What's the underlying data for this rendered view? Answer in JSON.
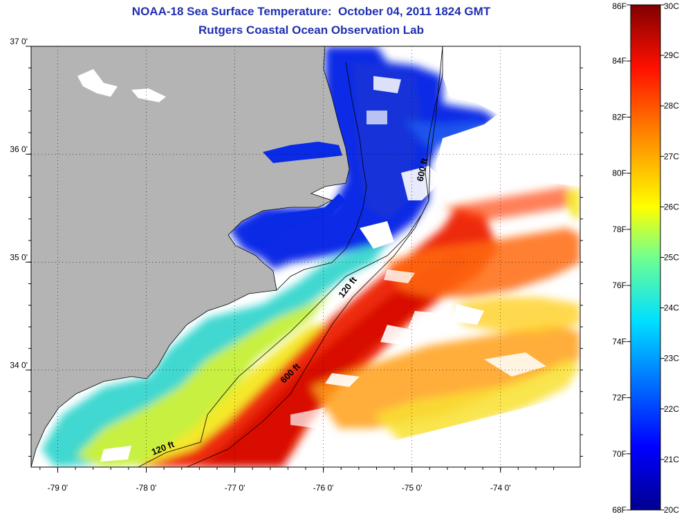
{
  "title_line1": "NOAA-18 Sea Surface Temperature:  October 04, 2011 1824 GMT",
  "title_line2": "Rutgers Coastal Ocean Observation Lab",
  "map": {
    "lon_range": [
      -79.3,
      -73.1
    ],
    "lat_range": [
      33.1,
      37.0
    ],
    "lon_ticks": [
      {
        "value": -79,
        "label": "-79 0'"
      },
      {
        "value": -78,
        "label": "-78 0'"
      },
      {
        "value": -77,
        "label": "-77 0'"
      },
      {
        "value": -76,
        "label": "-76 0'"
      },
      {
        "value": -75,
        "label": "-75 0'"
      },
      {
        "value": -74,
        "label": "-74 0'"
      }
    ],
    "lat_ticks": [
      {
        "value": 37,
        "label": "37 0'"
      },
      {
        "value": 36,
        "label": "36 0'"
      },
      {
        "value": 35,
        "label": "35 0'"
      },
      {
        "value": 34,
        "label": "34 0'"
      }
    ],
    "land_color": "#b4b4b4",
    "cloud_color": "#ffffff",
    "contour_labels": [
      {
        "text": "600 ft",
        "lon": -74.85,
        "lat": 35.85,
        "rotate": -78
      },
      {
        "text": "120 ft",
        "lon": -75.7,
        "lat": 34.75,
        "rotate": -52
      },
      {
        "text": "600 ft",
        "lon": -76.35,
        "lat": 33.95,
        "rotate": -45
      },
      {
        "text": "120 ft",
        "lon": -77.8,
        "lat": 33.25,
        "rotate": -22
      }
    ]
  },
  "colorbar": {
    "min_c": 20,
    "max_c": 30,
    "fahrenheit_labels": [
      "86F",
      "84F",
      "82F",
      "80F",
      "78F",
      "76F",
      "74F",
      "72F",
      "70F",
      "68F"
    ],
    "fahrenheit_values": [
      86,
      84,
      82,
      80,
      78,
      76,
      74,
      72,
      70,
      68
    ],
    "celsius_labels": [
      "30C",
      "29C",
      "28C",
      "27C",
      "26C",
      "25C",
      "24C",
      "23C",
      "22C",
      "21C",
      "20C"
    ],
    "celsius_values": [
      30,
      29,
      28,
      27,
      26,
      25,
      24,
      23,
      22,
      21,
      20
    ],
    "colors": [
      "#00008f",
      "#0000ff",
      "#0080ff",
      "#00ffff",
      "#80ff80",
      "#ffff00",
      "#ff8000",
      "#ff0000",
      "#800000"
    ]
  }
}
